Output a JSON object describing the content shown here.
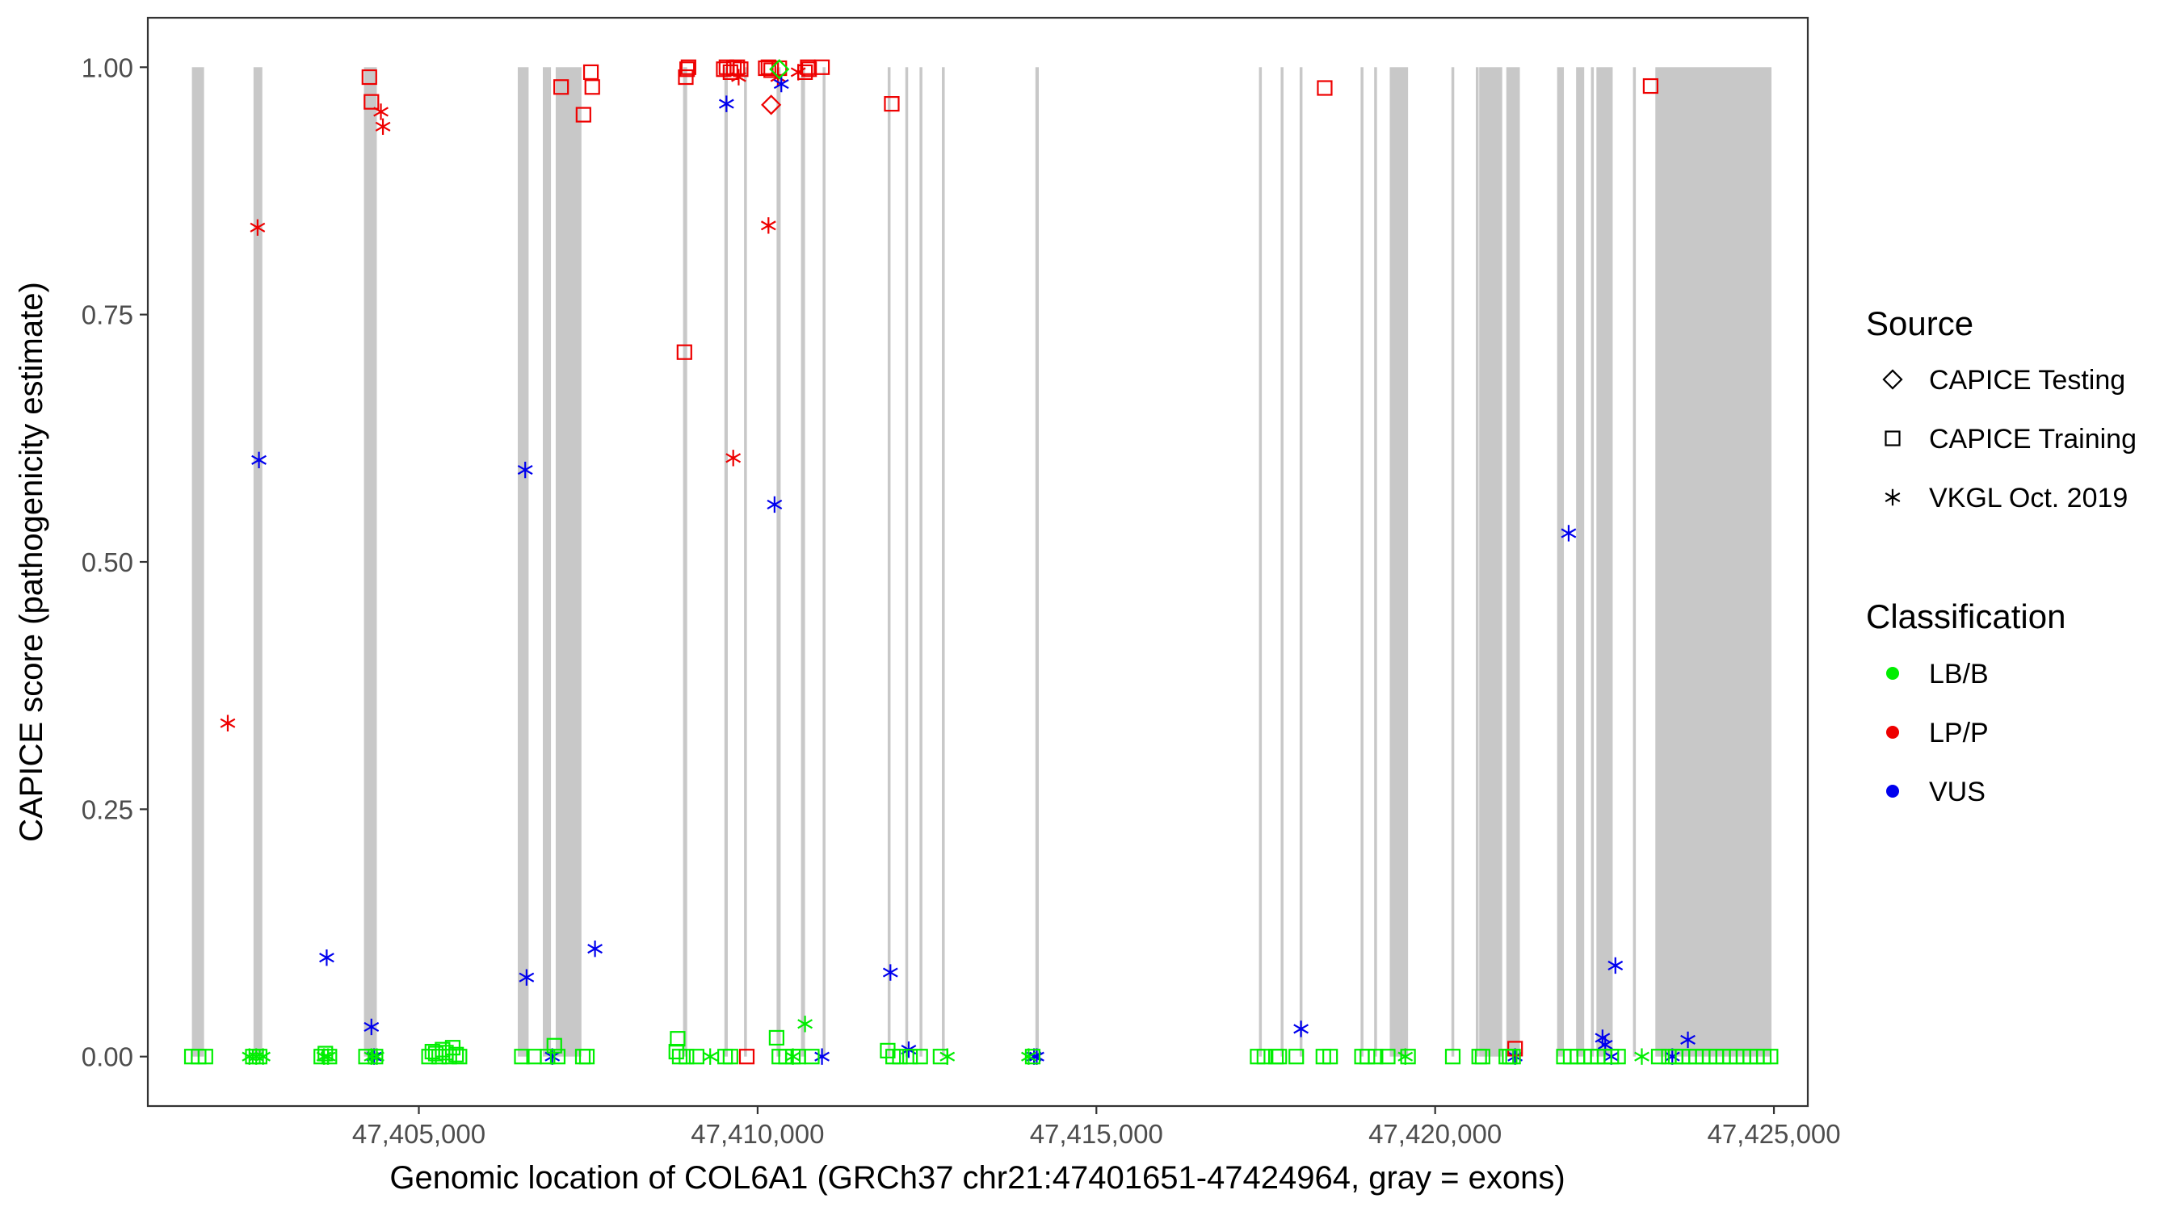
{
  "chart_data": {
    "type": "scatter",
    "xlabel": "Genomic location of COL6A1 (GRCh37 chr21:47401651-47424964, gray = exons)",
    "ylabel": "CAPICE score (pathogenicity estimate)",
    "xlim": [
      47401000,
      47425500
    ],
    "ylim": [
      -0.05,
      1.05
    ],
    "x_ticks": [
      47405000,
      47410000,
      47415000,
      47420000,
      47425000
    ],
    "x_tick_labels": [
      "47,405,000",
      "47,410,000",
      "47,415,000",
      "47,420,000",
      "47,425,000"
    ],
    "y_ticks": [
      0,
      0.25,
      0.5,
      0.75,
      1.0
    ],
    "y_tick_labels": [
      "0.00",
      "0.25",
      "0.50",
      "0.75",
      "1.00"
    ],
    "grid": false,
    "exon_color": "#c8c8c8",
    "exons": [
      [
        47401651,
        47401830
      ],
      [
        47402560,
        47402690
      ],
      [
        47404190,
        47404380
      ],
      [
        47406460,
        47406620
      ],
      [
        47406830,
        47406950
      ],
      [
        47407020,
        47407400
      ],
      [
        47408900,
        47408960
      ],
      [
        47409510,
        47409560
      ],
      [
        47409800,
        47409830
      ],
      [
        47410280,
        47410340
      ],
      [
        47410640,
        47410700
      ],
      [
        47410960,
        47410990
      ],
      [
        47411920,
        47411960
      ],
      [
        47412180,
        47412210
      ],
      [
        47412390,
        47412420
      ],
      [
        47412720,
        47412750
      ],
      [
        47414100,
        47414150
      ],
      [
        47417400,
        47417440
      ],
      [
        47417720,
        47417760
      ],
      [
        47418000,
        47418040
      ],
      [
        47418900,
        47418940
      ],
      [
        47419100,
        47419140
      ],
      [
        47419330,
        47419600
      ],
      [
        47420240,
        47420280
      ],
      [
        47420600,
        47420640
      ],
      [
        47420650,
        47420990
      ],
      [
        47421050,
        47421250
      ],
      [
        47421800,
        47421900
      ],
      [
        47422080,
        47422200
      ],
      [
        47422300,
        47422340
      ],
      [
        47422380,
        47422620
      ],
      [
        47422920,
        47422960
      ],
      [
        47423250,
        47424964
      ]
    ],
    "legend": {
      "position": "right",
      "source": {
        "title": "Source",
        "items": [
          {
            "label": "CAPICE Testing",
            "shape": "diamond"
          },
          {
            "label": "CAPICE Training",
            "shape": "square"
          },
          {
            "label": "VKGL Oct. 2019",
            "shape": "asterisk"
          }
        ]
      },
      "classification": {
        "title": "Classification",
        "items": [
          {
            "label": "LB/B",
            "color": "#00ee00"
          },
          {
            "label": "LP/P",
            "color": "#ee0000"
          },
          {
            "label": "VUS",
            "color": "#0000ee"
          }
        ]
      }
    },
    "series": [
      {
        "source": "VKGL Oct. 2019",
        "class": "LP/P",
        "shape": "asterisk",
        "color": "#ee0000",
        "x": [
          47402180,
          47402620,
          47404440,
          47404470,
          47409640,
          47409720,
          47410160,
          47410300,
          47410600
        ],
        "y": [
          0.337,
          0.838,
          0.955,
          0.94,
          0.605,
          0.99,
          0.84,
          0.99,
          0.995
        ]
      },
      {
        "source": "VKGL Oct. 2019",
        "class": "VUS",
        "shape": "asterisk",
        "color": "#0000ee",
        "x": [
          47402640,
          47403640,
          47404300,
          47404340,
          47406570,
          47406590,
          47406970,
          47407600,
          47409540,
          47410250,
          47410350,
          47410950,
          47411960,
          47412230,
          47414080,
          47414120,
          47418020,
          47421180,
          47421970,
          47422470,
          47422510,
          47422600,
          47422660,
          47423500,
          47423730
        ],
        "y": [
          0.603,
          0.1,
          0.03,
          0.0,
          0.593,
          0.08,
          0.0,
          0.109,
          0.963,
          0.558,
          0.983,
          0.0,
          0.085,
          0.007,
          0.0,
          0.0,
          0.028,
          0.0,
          0.529,
          0.019,
          0.012,
          0.0,
          0.092,
          0.0,
          0.017
        ]
      },
      {
        "source": "VKGL Oct. 2019",
        "class": "LB/B",
        "shape": "asterisk",
        "color": "#00ee00",
        "x": [
          47402500,
          47402600,
          47402700,
          47403600,
          47403660,
          47404300,
          47404380,
          47409300,
          47410700,
          47410520,
          47412800,
          47414000,
          47419560,
          47423050
        ],
        "y": [
          0.0,
          0.0,
          0.0,
          0.0,
          0.0,
          0.0,
          0.0,
          0.0,
          0.033,
          0.0,
          0.0,
          0.0,
          0.0,
          0.0
        ]
      },
      {
        "source": "CAPICE Training",
        "class": "LP/P",
        "shape": "square",
        "color": "#ee0000",
        "x": [
          47404270,
          47404300,
          47407100,
          47407430,
          47407540,
          47407560,
          47408920,
          47408940,
          47408960,
          47408980,
          47409500,
          47409540,
          47409600,
          47409650,
          47409700,
          47409750,
          47409840,
          47410120,
          47410160,
          47410200,
          47410320,
          47410700,
          47410740,
          47410760,
          47410950,
          47411980,
          47418370,
          47421180,
          47423180
        ],
        "y": [
          0.99,
          0.965,
          0.98,
          0.952,
          0.995,
          0.98,
          0.712,
          0.99,
          0.998,
          1.0,
          0.998,
          1.0,
          0.995,
          0.999,
          1.0,
          0.998,
          0.0,
          0.999,
          1.0,
          0.997,
          0.999,
          0.995,
          1.0,
          0.998,
          1.0,
          0.963,
          0.979,
          0.008,
          0.981
        ]
      },
      {
        "source": "CAPICE Training",
        "class": "LB/B",
        "shape": "square",
        "color": "#00ee00",
        "x": [
          47401650,
          47401750,
          47401850,
          47402550,
          47402650,
          47403560,
          47403620,
          47403680,
          47404220,
          47404360,
          47405150,
          47405200,
          47405250,
          47405300,
          47405350,
          47405400,
          47405450,
          47405500,
          47405550,
          47405600,
          47406520,
          47406700,
          47406900,
          47407000,
          47407050,
          47407420,
          47407480,
          47408800,
          47408820,
          47408850,
          47408950,
          47409100,
          47409520,
          47409600,
          47410280,
          47410320,
          47410420,
          47410520,
          47410600,
          47410800,
          47411920,
          47412000,
          47412100,
          47412250,
          47412400,
          47412700,
          47414060,
          47417380,
          47417480,
          47417650,
          47417700,
          47417950,
          47418350,
          47418450,
          47418920,
          47419000,
          47419120,
          47419300,
          47419600,
          47420260,
          47420650,
          47420700,
          47421050,
          47421100,
          47421150,
          47421900,
          47422000,
          47422100,
          47422200,
          47422300,
          47422400,
          47422500,
          47422600,
          47422700,
          47423300,
          47423450,
          47423550,
          47423650,
          47423750,
          47423850,
          47423950,
          47424050,
          47424150,
          47424250,
          47424350,
          47424450,
          47424550,
          47424650,
          47424750,
          47424850,
          47424950
        ],
        "y": [
          0.0,
          0.0,
          0.0,
          0.0,
          0.0,
          0.0,
          0.003,
          0.0,
          0.0,
          0.0,
          0.0,
          0.005,
          0.003,
          0.0,
          0.007,
          0.004,
          0.0,
          0.009,
          0.002,
          0.0,
          0.0,
          0.0,
          0.0,
          0.011,
          0.0,
          0.0,
          0.0,
          0.005,
          0.018,
          0.0,
          0.0,
          0.0,
          0.0,
          0.0,
          0.019,
          0.0,
          0.0,
          0.0,
          0.0,
          0.0,
          0.006,
          0.0,
          0.0,
          0.0,
          0.0,
          0.0,
          0.0,
          0.0,
          0.0,
          0.0,
          0.0,
          0.0,
          0.0,
          0.0,
          0.0,
          0.0,
          0.0,
          0.0,
          0.0,
          0.0,
          0.0,
          0.0,
          0.0,
          0.0,
          0.0,
          0.0,
          0.0,
          0.0,
          0.0,
          0.0,
          0.0,
          0.0,
          0.0,
          0.0,
          0.0,
          0.0,
          0.0,
          0.0,
          0.0,
          0.0,
          0.0,
          0.0,
          0.0,
          0.0,
          0.0,
          0.0,
          0.0,
          0.0,
          0.0,
          0.0,
          0.0
        ]
      },
      {
        "source": "CAPICE Testing",
        "class": "LP/P",
        "shape": "diamond",
        "color": "#ee0000",
        "x": [
          47410200
        ],
        "y": [
          0.962
        ]
      },
      {
        "source": "CAPICE Testing",
        "class": "LB/B",
        "shape": "diamond",
        "color": "#00ee00",
        "x": [
          47410320
        ],
        "y": [
          0.998
        ]
      }
    ]
  }
}
